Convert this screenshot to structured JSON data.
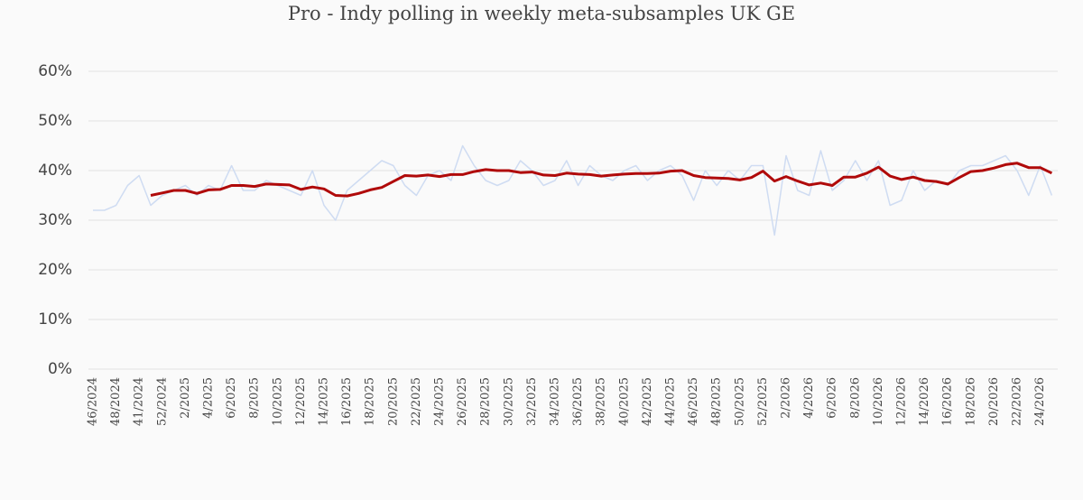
{
  "chart_data": {
    "type": "line",
    "title": "Pro - Indy polling in weekly meta-subsamples UK GE",
    "categories": [
      "46/2024",
      null,
      "48/2024",
      null,
      "41/2024",
      null,
      "52/2024",
      null,
      "2/2025",
      null,
      "4/2025",
      null,
      "6/2025",
      null,
      "8/2025",
      null,
      "10/2025",
      null,
      "12/2025",
      null,
      "14/2025",
      null,
      "16/2025",
      null,
      "18/2025",
      null,
      "20/2025",
      null,
      "22/2025",
      null,
      "24/2025",
      null,
      "26/2025",
      null,
      "28/2025",
      null,
      "30/2025",
      null,
      "32/2025",
      null,
      "34/2025",
      null,
      "36/2025",
      null,
      "38/2025",
      null,
      "40/2025",
      null,
      "42/2025",
      null,
      "44/2025",
      null,
      "46/2025",
      null,
      "48/2025",
      null,
      "50/2025",
      null,
      "52/2025",
      null,
      "2/2026",
      null,
      "4/2026",
      null,
      "6/2026",
      null,
      "8/2026",
      null,
      "10/2026",
      null,
      "12/2026",
      null,
      "14/2026",
      null,
      "16/2026",
      null,
      "18/2026",
      null,
      "20/2026",
      null,
      "22/2026",
      null,
      "24/2026",
      null
    ],
    "series": [
      {
        "color": "#cfdcf2",
        "values": [
          32,
          32,
          33,
          37,
          39,
          33,
          35,
          36,
          37,
          35,
          37,
          36,
          41,
          36,
          36,
          38,
          37,
          36,
          35,
          40,
          33,
          30,
          36,
          38,
          40,
          42,
          41,
          37,
          35,
          39,
          40,
          38,
          45,
          41,
          38,
          37,
          38,
          42,
          40,
          37,
          38,
          42,
          37,
          41,
          39,
          38,
          40,
          41,
          38,
          40,
          41,
          39,
          34,
          40,
          37,
          40,
          38,
          41,
          41,
          27,
          43,
          36,
          35,
          44,
          36,
          38,
          42,
          38,
          42,
          33,
          34,
          40,
          36,
          38,
          37,
          40,
          41,
          41,
          42,
          43,
          40,
          35,
          41,
          35
        ]
      },
      {
        "color": "#b00a0a",
        "values": [
          null,
          null,
          null,
          null,
          null,
          35.0,
          35.5,
          36.0,
          36.0,
          35.4,
          36.1,
          36.2,
          37.0,
          37.0,
          36.8,
          37.3,
          37.2,
          37.1,
          36.2,
          36.7,
          36.3,
          35.0,
          34.9,
          35.4,
          36.1,
          36.6,
          37.8,
          39.0,
          38.9,
          39.1,
          38.8,
          39.2,
          39.2,
          39.8,
          40.2,
          40.0,
          40.0,
          39.6,
          39.7,
          39.1,
          39.0,
          39.5,
          39.3,
          39.2,
          38.9,
          39.1,
          39.3,
          39.4,
          39.4,
          39.5,
          39.9,
          40.0,
          39.0,
          38.6,
          38.5,
          38.4,
          38.1,
          38.6,
          39.9,
          37.9,
          38.8,
          37.9,
          37.1,
          37.5,
          37.0,
          38.7,
          38.7,
          39.5,
          40.7,
          38.9,
          38.2,
          38.7,
          38.0,
          37.8,
          37.3,
          38.6,
          39.8,
          40.0,
          40.5,
          41.2,
          41.5,
          40.6,
          40.6,
          39.5
        ]
      }
    ],
    "ylim": [
      0,
      60
    ],
    "yticks": [
      {
        "value": 0,
        "label": "0%"
      },
      {
        "value": 10,
        "label": "10%"
      },
      {
        "value": 20,
        "label": "20%"
      },
      {
        "value": 30,
        "label": "30%"
      },
      {
        "value": 40,
        "label": "40%"
      },
      {
        "value": 50,
        "label": "50%"
      },
      {
        "value": 60,
        "label": "60%"
      }
    ],
    "grid": true
  }
}
